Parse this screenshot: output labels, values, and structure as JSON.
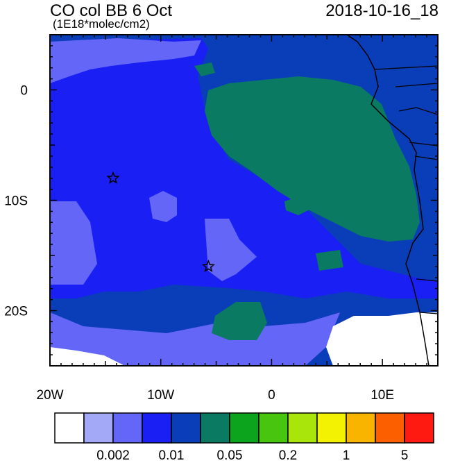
{
  "title": "CO col BB 6 Oct",
  "units": "(1E18*molec/cm2)",
  "datetime": "2018-10-16_18",
  "map": {
    "lon_range": [
      -20,
      15
    ],
    "lat_range": [
      -25,
      5
    ],
    "lon_ticks": [
      "20W",
      "10W",
      "0",
      "10E"
    ],
    "lat_ticks": [
      "0",
      "10S",
      "20S"
    ],
    "markers": [
      {
        "name": "star-marker",
        "lon": -14.3,
        "lat": -8.0
      },
      {
        "name": "star-marker",
        "lon": -5.7,
        "lat": -16.0
      }
    ]
  },
  "colorbar": {
    "colors": [
      "#ffffff",
      "#a3a8f7",
      "#6466f7",
      "#1a1ff4",
      "#0a3db8",
      "#0a7a63",
      "#0ca41c",
      "#48c60f",
      "#a9e40a",
      "#f3f203",
      "#f9b400",
      "#fc5f00",
      "#fe1a10"
    ],
    "labels": [
      "0.002",
      "0.01",
      "0.05",
      "0.2",
      "1",
      "5"
    ]
  }
}
